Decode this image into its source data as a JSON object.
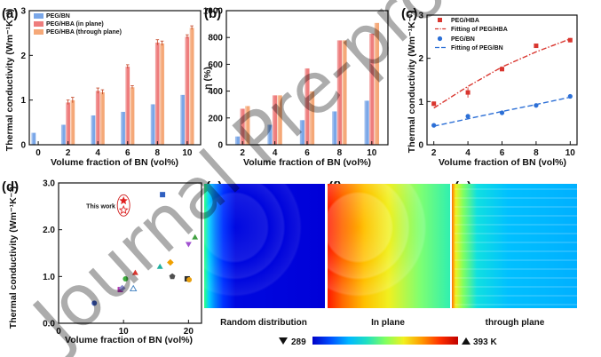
{
  "watermark": "Journal Pre-proof",
  "chart_data": [
    {
      "panel": "(a)",
      "type": "bar",
      "xlabel": "Volume fraction of BN (vol%)",
      "ylabel": "Thermal conductivity (Wm⁻¹K⁻¹)",
      "xlim": [
        -0.6,
        10.9
      ],
      "ylim": [
        0,
        3.0
      ],
      "xticks": [
        "0",
        "2",
        "4",
        "6",
        "8",
        "10"
      ],
      "yticks": [
        "0",
        "1",
        "2",
        "3"
      ],
      "legend": [
        "PEG/BN",
        "PEG/HBA (in plane)",
        "PEG/HBA (through plane)"
      ],
      "legend_position": "top-left",
      "series": [
        {
          "name": "PEG/BN",
          "color": "#7aa7e8",
          "x": [
            0,
            2,
            4,
            6,
            8,
            10
          ],
          "values": [
            0.27,
            0.45,
            0.66,
            0.74,
            0.91,
            1.12
          ]
        },
        {
          "name": "PEG/HBA (in plane)",
          "color": "#ee7d7d",
          "x": [
            2,
            4,
            6,
            8,
            10
          ],
          "values": [
            0.95,
            1.21,
            1.75,
            2.29,
            2.42
          ]
        },
        {
          "name": "PEG/HBA (through plane)",
          "color": "#f5a878",
          "x": [
            2,
            4,
            6,
            8,
            10
          ],
          "values": [
            1.0,
            1.18,
            1.29,
            2.27,
            2.62
          ]
        }
      ]
    },
    {
      "panel": "(b)",
      "type": "bar",
      "xlabel": "Volume fraction of BN (vol%)",
      "ylabel": "η (%)",
      "xlim": [
        1.0,
        11.0
      ],
      "ylim": [
        0,
        1000
      ],
      "xticks": [
        "2",
        "4",
        "6",
        "8",
        "10"
      ],
      "yticks": [
        "0",
        "200",
        "400",
        "600",
        "800",
        "1000"
      ],
      "series": [
        {
          "name": "PEG/BN",
          "color": "#7aa7e8",
          "x": [
            2,
            4,
            6,
            8,
            10
          ],
          "values": [
            63,
            150,
            185,
            250,
            330
          ]
        },
        {
          "name": "PEG/HBA (in plane)",
          "color": "#ee7d7d",
          "x": [
            2,
            4,
            6,
            8,
            10
          ],
          "values": [
            270,
            370,
            570,
            780,
            830
          ]
        },
        {
          "name": "PEG/HBA (through plane)",
          "color": "#f5a878",
          "x": [
            2,
            4,
            6,
            8,
            10
          ],
          "values": [
            290,
            370,
            400,
            780,
            910
          ]
        }
      ]
    },
    {
      "panel": "(c)",
      "type": "scatter",
      "xlabel": "Volume fraction of BN (vol%)",
      "ylabel": "Thermal conductivity (Wm⁻¹K⁻¹)",
      "xlim": [
        1.6,
        10.4
      ],
      "ylim": [
        0,
        3.0
      ],
      "xticks": [
        "2",
        "4",
        "6",
        "8",
        "10"
      ],
      "yticks": [
        "0",
        "1",
        "2",
        "3"
      ],
      "legend": [
        "PEG/HBA",
        "Fitting of PEG/HBA",
        "PEG/BN",
        "Fitting of PEG/BN"
      ],
      "legend_position": "top-right",
      "series": [
        {
          "name": "PEG/HBA",
          "color": "#d9362f",
          "x": [
            2,
            4,
            6,
            8,
            10
          ],
          "values": [
            0.95,
            1.21,
            1.75,
            2.29,
            2.42
          ]
        },
        {
          "name": "Fitting of PEG/HBA",
          "color": "#d9362f",
          "x": [
            2,
            4,
            6,
            8,
            10
          ],
          "values": [
            0.85,
            1.35,
            1.8,
            2.15,
            2.45
          ]
        },
        {
          "name": "PEG/BN",
          "color": "#2c6fd6",
          "x": [
            2,
            4,
            6,
            8,
            10
          ],
          "values": [
            0.45,
            0.66,
            0.74,
            0.91,
            1.12
          ]
        },
        {
          "name": "Fitting of PEG/BN",
          "color": "#2c6fd6",
          "x": [
            2,
            4,
            6,
            8,
            10
          ],
          "values": [
            0.43,
            0.6,
            0.77,
            0.93,
            1.1
          ]
        }
      ]
    },
    {
      "panel": "(d)",
      "type": "scatter",
      "xlabel": "Volume fraction of BN (vol%)",
      "ylabel": "Thermal conductivity (Wm⁻¹K⁻¹)",
      "xlim": [
        0,
        22
      ],
      "ylim": [
        0,
        3.0
      ],
      "xticks": [
        "0",
        "10",
        "20"
      ],
      "yticks": [
        "0.0",
        "1.0",
        "2.0",
        "3.0"
      ],
      "annotation": "This work",
      "series": [
        {
          "name": "",
          "points": [
            {
              "x": 10.0,
              "y": 2.62,
              "marker": "star",
              "color": "#e02020"
            },
            {
              "x": 10.0,
              "y": 2.42,
              "marker": "star-open",
              "color": "#e02020"
            },
            {
              "x": 5.5,
              "y": 0.43,
              "marker": "circle",
              "color": "#3b5ab8"
            },
            {
              "x": 9.5,
              "y": 0.72,
              "marker": "square",
              "color": "#b03ab0"
            },
            {
              "x": 9.8,
              "y": 0.75,
              "marker": "diamond",
              "color": "#8a8ad0"
            },
            {
              "x": 10.3,
              "y": 0.95,
              "marker": "circle",
              "color": "#3fae3f"
            },
            {
              "x": 11.5,
              "y": 0.73,
              "marker": "triangle-open",
              "color": "#4080c0"
            },
            {
              "x": 11.8,
              "y": 1.07,
              "marker": "triangle",
              "color": "#d9362f"
            },
            {
              "x": 15.6,
              "y": 1.2,
              "marker": "triangle",
              "color": "#20b0a0"
            },
            {
              "x": 16.0,
              "y": 2.75,
              "marker": "square",
              "color": "#3060c0"
            },
            {
              "x": 17.2,
              "y": 1.3,
              "marker": "diamond",
              "color": "#f0a000"
            },
            {
              "x": 17.5,
              "y": 1.0,
              "marker": "pentagon",
              "color": "#505050"
            },
            {
              "x": 19.8,
              "y": 0.95,
              "marker": "square",
              "color": "#303030"
            },
            {
              "x": 20.1,
              "y": 0.93,
              "marker": "circle",
              "color": "#e8a010"
            },
            {
              "x": 20.0,
              "y": 1.7,
              "marker": "triangle-down",
              "color": "#a050d0"
            },
            {
              "x": 21.0,
              "y": 1.83,
              "marker": "triangle",
              "color": "#40a040"
            }
          ]
        }
      ]
    }
  ],
  "images": [
    {
      "panel": "(e)",
      "caption": "Random distribution",
      "mode": "random"
    },
    {
      "panel": "(f)",
      "caption": "In plane",
      "mode": "inplane"
    },
    {
      "panel": "(g)",
      "caption": "through plane",
      "mode": "through"
    }
  ],
  "colorbar": {
    "min_label": "289",
    "max_label": "393 K",
    "colors": [
      "#0000c8",
      "#0050ff",
      "#00b8ff",
      "#20e0c0",
      "#80ff60",
      "#f0f020",
      "#ff9a00",
      "#ff3000",
      "#c00000"
    ]
  }
}
